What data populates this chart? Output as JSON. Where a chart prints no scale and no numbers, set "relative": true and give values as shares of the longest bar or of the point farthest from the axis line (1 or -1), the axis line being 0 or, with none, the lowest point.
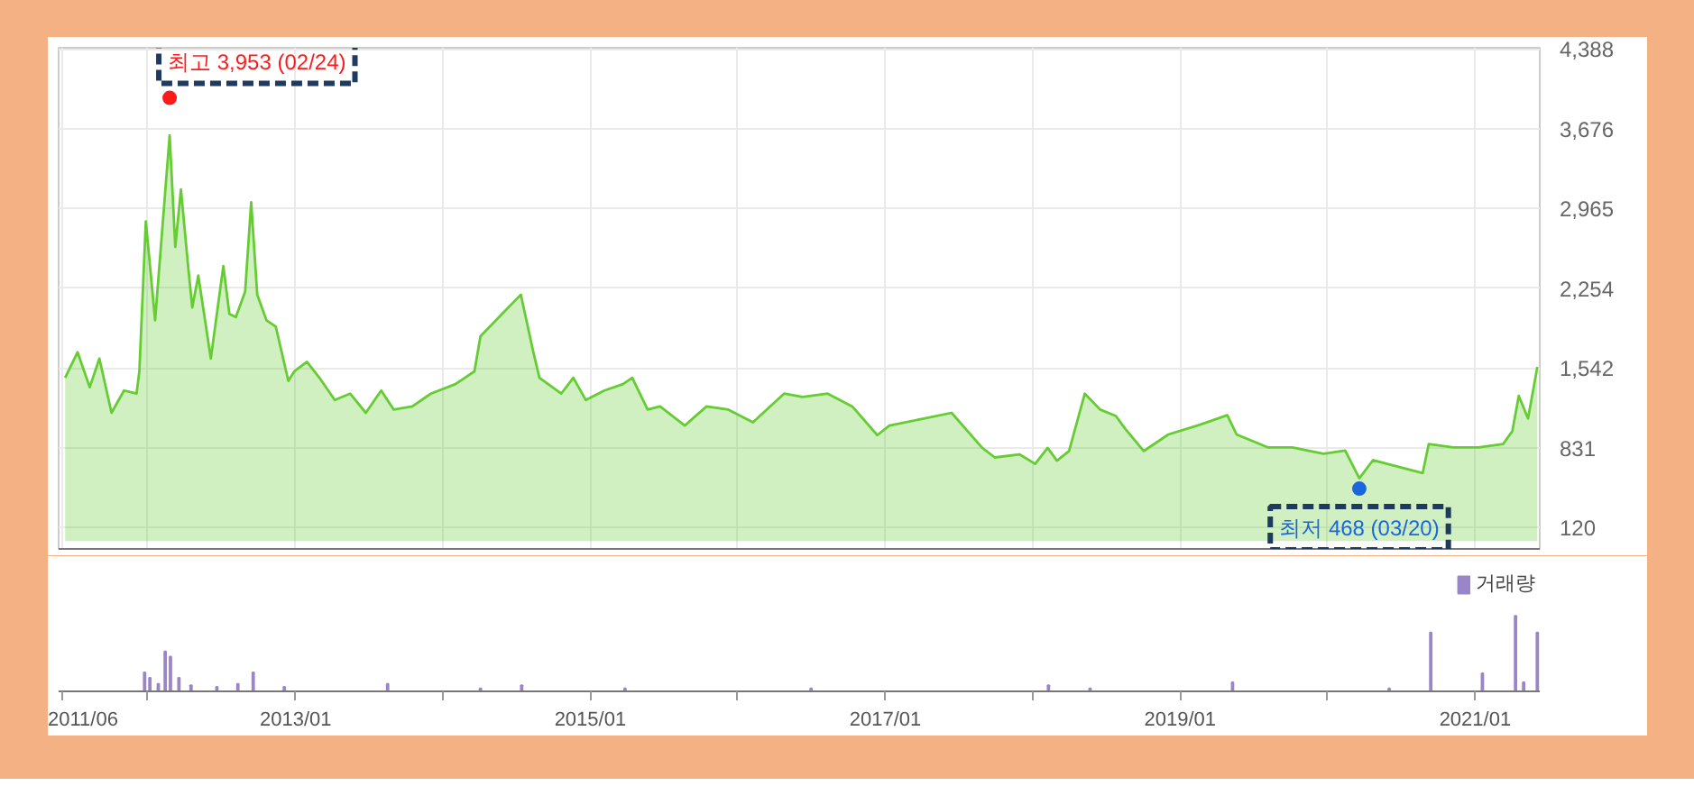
{
  "chart_data": [
    {
      "type": "area",
      "x": [
        "2011-06-10",
        "2011-07-11",
        "2011-08-10",
        "2011-09-03",
        "2011-10-03",
        "2011-11-03",
        "2011-12-04",
        "2011-12-11",
        "2011-12-27",
        "2012-01-19",
        "2012-02-24",
        "2012-03-09",
        "2012-03-23",
        "2012-04-09",
        "2012-04-20",
        "2012-05-05",
        "2012-06-05",
        "2012-07-06",
        "2012-07-21",
        "2012-08-06",
        "2012-08-29",
        "2012-09-13",
        "2012-09-28",
        "2012-10-21",
        "2012-11-13",
        "2012-12-14",
        "2012-12-29",
        "2013-01-29",
        "2013-03-01",
        "2013-04-08",
        "2013-05-16",
        "2013-06-24",
        "2013-08-01",
        "2013-09-01",
        "2013-10-17",
        "2013-12-02",
        "2014-02-01",
        "2014-03-20",
        "2014-04-04",
        "2014-05-20",
        "2014-07-05",
        "2014-07-13",
        "2014-08-13",
        "2014-08-28",
        "2014-10-21",
        "2014-11-20",
        "2014-12-21",
        "2015-02-05",
        "2015-03-23",
        "2015-04-15",
        "2015-05-23",
        "2015-06-23",
        "2015-08-23",
        "2015-10-16",
        "2015-12-09",
        "2016-02-08",
        "2016-04-25",
        "2016-06-10",
        "2016-08-11",
        "2016-10-11",
        "2016-12-12",
        "2017-01-11",
        "2017-03-29",
        "2017-06-14",
        "2017-08-29",
        "2017-09-29",
        "2017-11-29",
        "2018-01-07",
        "2018-02-07",
        "2018-03-02",
        "2018-04-01",
        "2018-05-10",
        "2018-06-17",
        "2018-07-26",
        "2018-08-18",
        "2018-10-03",
        "2018-12-03",
        "2019-02-18",
        "2019-04-28",
        "2019-05-21",
        "2019-08-06",
        "2019-10-06",
        "2019-12-22",
        "2020-02-14",
        "2020-03-20",
        "2020-04-23",
        "2020-06-23",
        "2020-08-24",
        "2020-09-08",
        "2020-11-08",
        "2021-01-09",
        "2021-03-11",
        "2021-04-03",
        "2021-04-19",
        "2021-05-12",
        "2021-06-04"
      ],
      "series": [
        {
          "color": "#66cc33",
          "values": [
            1457,
            1685,
            1372,
            1628,
            1144,
            1343,
            1315,
            1514,
            2851,
            1969,
            3619,
            2624,
            3136,
            2481,
            2083,
            2368,
            1628,
            2453,
            2026,
            1998,
            2225,
            3022,
            2197,
            1969,
            1912,
            1429,
            1514,
            1599,
            1457,
            1258,
            1315,
            1144,
            1343,
            1173,
            1201,
            1315,
            1400,
            1514,
            1827,
            1998,
            2168,
            2197,
            1685,
            1457,
            1315,
            1457,
            1258,
            1343,
            1400,
            1457,
            1173,
            1201,
            1030,
            1201,
            1173,
            1059,
            1315,
            1286,
            1315,
            1201,
            945,
            1030,
            1087,
            1144,
            831,
            746,
            774,
            689,
            831,
            717,
            803,
            1315,
            1173,
            1116,
            1002,
            803,
            951,
            1037,
            1123,
            951,
            836,
            836,
            779,
            808,
            560,
            722,
            664,
            607,
            865,
            836,
            836,
            865,
            980,
            1295,
            1094,
            1553
          ]
        }
      ],
      "xlim": [
        "2011-05-25",
        "2021-06-10"
      ],
      "ylim": [
        -70,
        4400
      ],
      "xticks": [
        "2011-06-01",
        "2012-01-01",
        "2013-01-01",
        "2014-01-01",
        "2015-01-01",
        "2016-01-01",
        "2017-01-01",
        "2018-01-01",
        "2019-01-01",
        "2020-01-01",
        "2021-01-01"
      ],
      "yticks": [
        120,
        831,
        {
          "value": 1542,
          "label": "1,542"
        },
        {
          "value": 2254,
          "label": "2,254"
        },
        {
          "value": 2965,
          "label": "2,965"
        },
        {
          "value": 3676,
          "label": "3,676"
        },
        {
          "value": 4388,
          "label": "4,388"
        }
      ],
      "tick_labels": "y",
      "grid": true,
      "annotations": [
        {
          "text": "최고 3,953 (02/24)",
          "x": "2012-02-24",
          "y": 3953
        },
        {
          "text": "최저 468 (03/20)",
          "x": "2020-03-20",
          "y": 468
        }
      ]
    },
    {
      "type": "bar",
      "relative": true,
      "legend": "right",
      "x": [
        "2011-12-24",
        "2012-01-06",
        "2012-01-27",
        "2012-02-13",
        "2012-02-26",
        "2012-03-18",
        "2012-04-17",
        "2012-06-20",
        "2012-08-11",
        "2012-09-18",
        "2012-12-04",
        "2013-08-17",
        "2014-04-04",
        "2014-07-15",
        "2015-03-28",
        "2016-07-01",
        "2018-02-09",
        "2018-05-23",
        "2019-05-11",
        "2020-06-02",
        "2020-09-13",
        "2021-01-19",
        "2021-04-11",
        "2021-05-01",
        "2021-06-04"
      ],
      "series": [
        {
          "name": "거래량",
          "color": "#9b85c9",
          "values": [
            0.25,
            0.18,
            0.1,
            0.53,
            0.46,
            0.18,
            0.08,
            0.06,
            0.1,
            0.25,
            0.06,
            0.1,
            0.04,
            0.08,
            0.04,
            0.04,
            0.08,
            0.04,
            0.12,
            0.04,
            0.78,
            0.24,
            1.0,
            0.12,
            0.78
          ]
        }
      ],
      "xlim": [
        "2011-05-25",
        "2021-06-10"
      ],
      "xticks": [
        {
          "value": "2011-06-01",
          "label": "2011/06"
        },
        {
          "value": "2012-01-01",
          "label": null
        },
        {
          "value": "2013-01-01",
          "label": "2013/01"
        },
        {
          "value": "2014-01-01",
          "label": null
        },
        {
          "value": "2015-01-01",
          "label": "2015/01"
        },
        {
          "value": "2016-01-01",
          "label": null
        },
        {
          "value": "2017-01-01",
          "label": "2017/01"
        },
        {
          "value": "2018-01-01",
          "label": null
        },
        {
          "value": "2019-01-01",
          "label": "2019/01"
        },
        {
          "value": "2020-01-01",
          "label": null
        },
        {
          "value": "2021-01-01",
          "label": "2021/01"
        }
      ],
      "tick_labels": "x"
    }
  ]
}
